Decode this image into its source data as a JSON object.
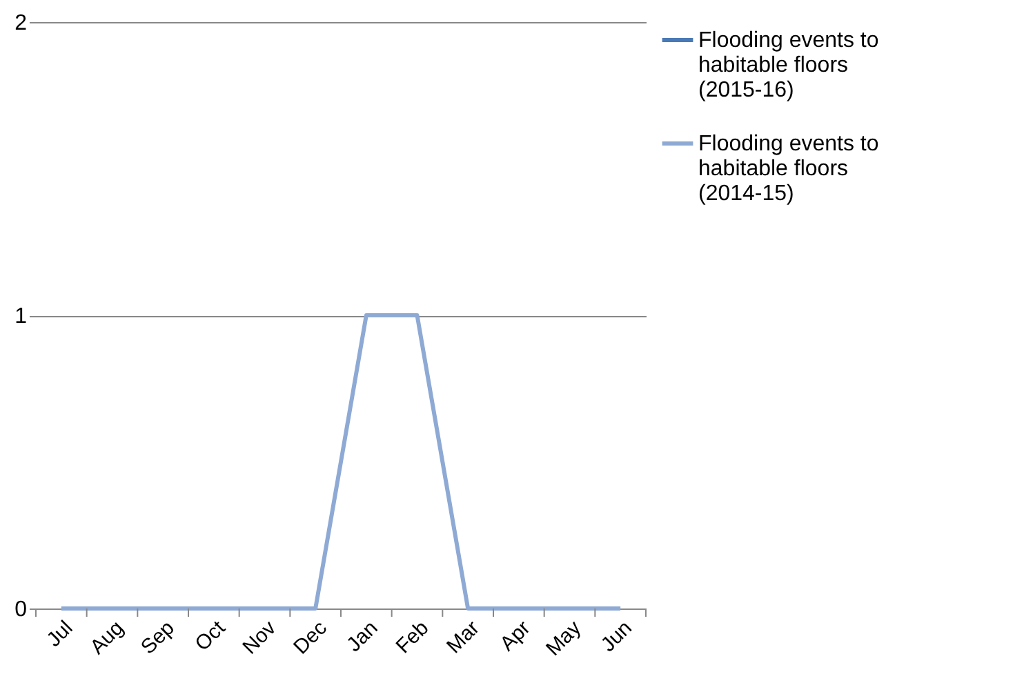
{
  "chart_data": {
    "type": "line",
    "categories": [
      "Jul",
      "Aug",
      "Sep",
      "Oct",
      "Nov",
      "Dec",
      "Jan",
      "Feb",
      "Mar",
      "Apr",
      "May",
      "Jun"
    ],
    "series": [
      {
        "name": "Flooding events to habitable floors (2015-16)",
        "color": "#4a7ab5",
        "values": [
          null,
          null,
          null,
          null,
          null,
          null,
          null,
          null,
          null,
          null,
          null,
          null
        ]
      },
      {
        "name": "Flooding events to habitable floors (2014-15)",
        "color": "#8eaad4",
        "values": [
          0,
          0,
          0,
          0,
          0,
          0,
          1,
          1,
          0,
          0,
          0,
          0
        ]
      }
    ],
    "ylim": [
      0,
      2
    ],
    "yticks": [
      0,
      1,
      2
    ],
    "grid": "y",
    "legend": "right",
    "marker": "none",
    "line_style": "solid"
  }
}
